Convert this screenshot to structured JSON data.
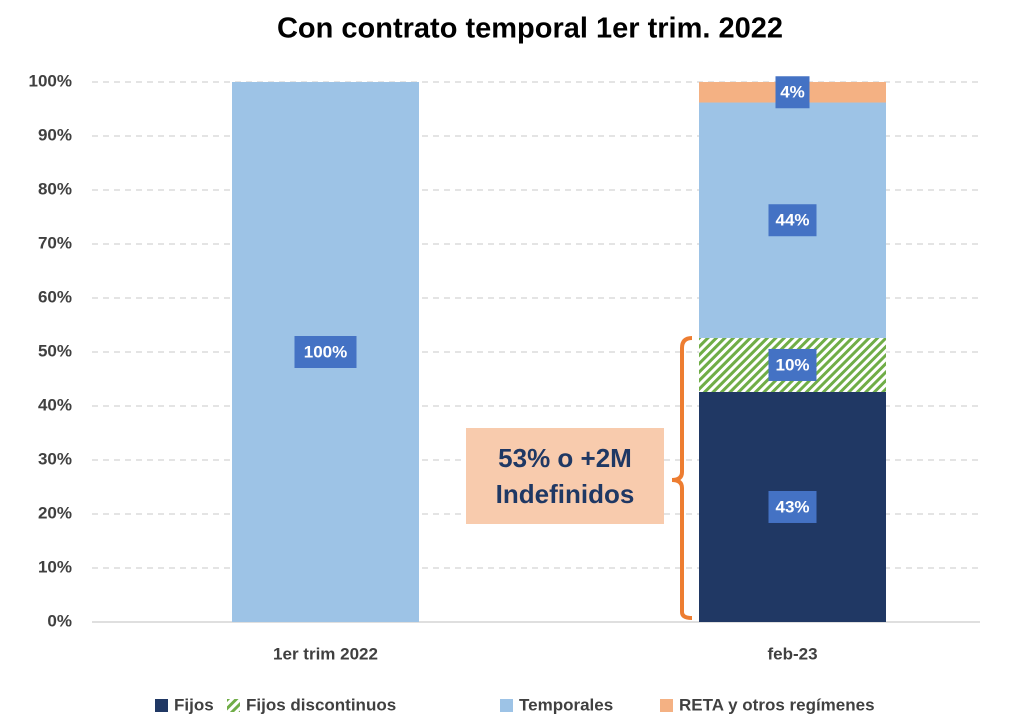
{
  "chart_data": {
    "type": "stacked_bar",
    "title": "Con contrato temporal 1er trim. 2022",
    "categories": [
      "1er trim 2022",
      "feb-23"
    ],
    "series": [
      {
        "name": "Fijos",
        "color": "#203864",
        "values": [
          null,
          42.6
        ],
        "value_labels": [
          null,
          "43%"
        ]
      },
      {
        "name": "Fijos discontinuos",
        "color": "#70ad47",
        "pattern": "hatch",
        "values": [
          null,
          10
        ],
        "value_labels": [
          null,
          "10%"
        ]
      },
      {
        "name": "Temporales",
        "color": "#9dc3e6",
        "values": [
          100,
          43.6
        ],
        "value_labels": [
          "100%",
          "44%"
        ]
      },
      {
        "name": "RETA y otros regímenes",
        "color": "#f4b183",
        "values": [
          null,
          3.8
        ],
        "value_labels": [
          null,
          "4%"
        ]
      }
    ],
    "ylim": [
      0,
      100
    ],
    "yticks": [
      {
        "value": 0,
        "label": "0%"
      },
      {
        "value": 10,
        "label": "10%"
      },
      {
        "value": 20,
        "label": "20%"
      },
      {
        "value": 30,
        "label": "30%"
      },
      {
        "value": 40,
        "label": "40%"
      },
      {
        "value": 50,
        "label": "50%"
      },
      {
        "value": 60,
        "label": "60%"
      },
      {
        "value": 70,
        "label": "70%"
      },
      {
        "value": 80,
        "label": "80%"
      },
      {
        "value": 90,
        "label": "90%"
      },
      {
        "value": 100,
        "label": "100%"
      }
    ],
    "grid": true,
    "legend": "bottom",
    "annotation": {
      "lines": [
        "53% o +2M",
        "Indefinidos"
      ]
    }
  }
}
